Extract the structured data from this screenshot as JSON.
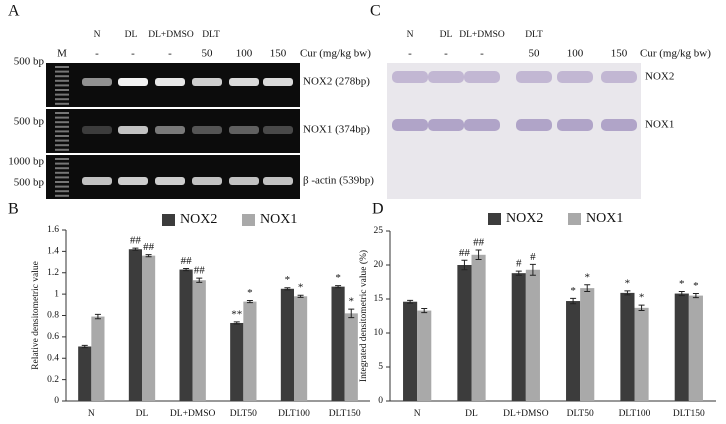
{
  "panel_a": {
    "label": "A",
    "groups": [
      "N",
      "DL",
      "DL+DMSO",
      "DLT"
    ],
    "ladder": "M",
    "doses": [
      "-",
      "-",
      "-",
      "50",
      "100",
      "150"
    ],
    "dose_unit": "Cur (mg/kg bw)",
    "gels": [
      {
        "markers": [
          "500 bp"
        ],
        "band": "NOX2 (278bp)"
      },
      {
        "markers": [
          "500 bp"
        ],
        "band": "NOX1 (374bp)"
      },
      {
        "markers": [
          "1000 bp",
          "500 bp"
        ],
        "band": "β -actin (539bp)"
      }
    ]
  },
  "panel_c": {
    "label": "C",
    "groups": [
      "N",
      "DL",
      "DL+DMSO",
      "DLT"
    ],
    "doses": [
      "-",
      "-",
      "-",
      "50",
      "100",
      "150"
    ],
    "dose_unit": "Cur (mg/kg bw)",
    "bands": [
      "NOX2",
      "NOX1"
    ]
  },
  "chart_data": [
    {
      "type": "bar",
      "panel": "B",
      "y_label": "Relative densitometric value",
      "categories": [
        "N",
        "DL",
        "DL+DMSO",
        "DLT50",
        "DLT100",
        "DLT150"
      ],
      "series": [
        {
          "name": "NOX2",
          "color": "#3c3c3c",
          "values": [
            0.51,
            1.42,
            1.23,
            0.73,
            1.05,
            1.07
          ],
          "errors": [
            0.01,
            0.01,
            0.01,
            0.01,
            0.01,
            0.01
          ],
          "annotations": [
            null,
            "##",
            "##",
            "**",
            "*",
            "*"
          ]
        },
        {
          "name": "NOX1",
          "color": "#a9a9a9",
          "values": [
            0.79,
            1.36,
            1.13,
            0.93,
            0.98,
            0.82
          ],
          "errors": [
            0.02,
            0.01,
            0.02,
            0.01,
            0.01,
            0.04
          ],
          "annotations": [
            null,
            "##",
            "##",
            "*",
            "*",
            "*"
          ]
        }
      ],
      "ylim": [
        0,
        1.6
      ],
      "yticks": [
        0,
        0.2,
        0.4,
        0.6,
        0.8,
        1,
        1.2,
        1.4,
        1.6
      ]
    },
    {
      "type": "bar",
      "panel": "D",
      "y_label": "Integrated densitometric value (%)",
      "categories": [
        "N",
        "DL",
        "DL+DMSO",
        "DLT50",
        "DLT100",
        "DLT150"
      ],
      "series": [
        {
          "name": "NOX2",
          "color": "#3c3c3c",
          "values": [
            14.6,
            20.0,
            18.8,
            14.7,
            15.9,
            15.8
          ],
          "errors": [
            0.2,
            0.7,
            0.3,
            0.4,
            0.3,
            0.3
          ],
          "annotations": [
            null,
            "##",
            "#",
            "*",
            "*",
            "*"
          ]
        },
        {
          "name": "NOX1",
          "color": "#a9a9a9",
          "values": [
            13.3,
            21.5,
            19.3,
            16.6,
            13.7,
            15.5
          ],
          "errors": [
            0.3,
            0.7,
            0.8,
            0.5,
            0.4,
            0.3
          ],
          "annotations": [
            null,
            "##",
            "#",
            "*",
            "*",
            "*"
          ]
        }
      ],
      "ylim": [
        0,
        25
      ],
      "yticks": [
        0,
        5,
        10,
        15,
        20,
        25
      ]
    }
  ]
}
